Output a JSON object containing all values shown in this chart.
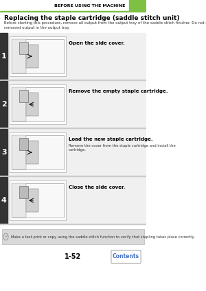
{
  "header_text": "BEFORE USING THE MACHINE",
  "header_bar_color": "#7dc143",
  "header_bg_color": "#ffffff",
  "header_text_color": "#000000",
  "title": "Replacing the staple cartridge (saddle stitch unit)",
  "subtitle": "Before starting this procedure, remove all output from the output tray of the saddle stitch finisher. Do not replace\nremoved output in the output tray.",
  "steps": [
    {
      "number": "1",
      "main_text": "Open the side cover.",
      "sub_text": ""
    },
    {
      "number": "2",
      "main_text": "Remove the empty staple cartridge.",
      "sub_text": ""
    },
    {
      "number": "3",
      "main_text": "Load the new staple cartridge.",
      "sub_text": "Remove the cover from the staple cartridge and install the\ncartridge."
    },
    {
      "number": "4",
      "main_text": "Close the side cover.",
      "sub_text": ""
    }
  ],
  "note_text": "Make a test print or copy using the saddle stitch function to verify that stapling takes place correctly.",
  "page_number": "1-52",
  "contents_text": "Contents",
  "contents_btn_color": "#4472c4",
  "step_num_bg": "#333333",
  "step_num_color": "#ffffff",
  "step_bg_color": "#f0f0f0",
  "note_bg_color": "#d9d9d9",
  "separator_color": "#cccccc",
  "image_bg": "#ffffff",
  "image_border": "#aaaaaa"
}
